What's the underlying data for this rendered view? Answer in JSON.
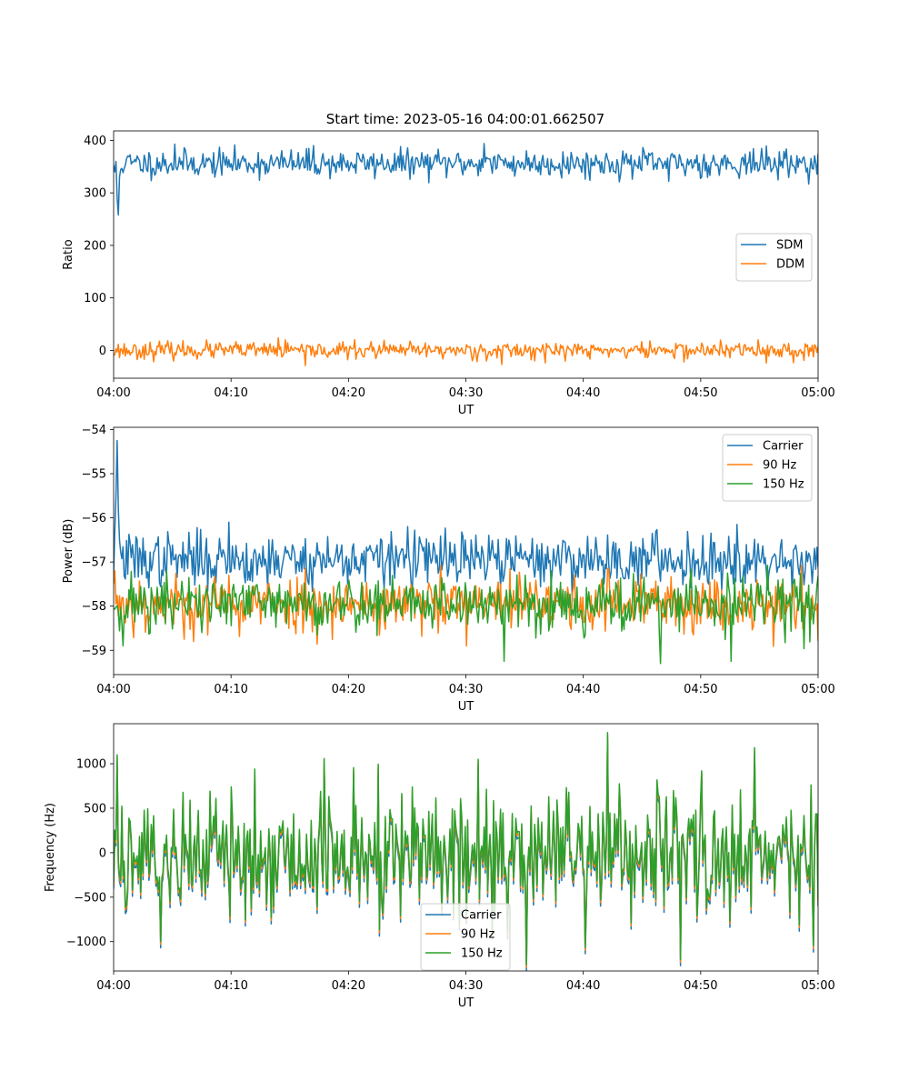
{
  "figure_title": "Start time: 2023-05-16 04:00:01.662507",
  "colors": {
    "c0": "#1f77b4",
    "c1": "#ff7f0e",
    "c2": "#2ca02c"
  },
  "chart_data": [
    {
      "type": "line",
      "title": "Start time: 2023-05-16 04:00:01.662507",
      "xlabel": "UT",
      "ylabel": "Ratio",
      "x_ticks": [
        "04:00",
        "04:10",
        "04:20",
        "04:30",
        "04:40",
        "04:50",
        "05:00"
      ],
      "y_ticks": [
        "0",
        "100",
        "200",
        "300",
        "400"
      ],
      "y_tick_values": [
        0,
        100,
        200,
        300,
        400
      ],
      "xlim": [
        "04:00",
        "05:00"
      ],
      "ylim": [
        -53,
        418
      ],
      "legend_position": "center-right",
      "n_points": 600,
      "series": [
        {
          "name": "SDM",
          "color": "#1f77b4",
          "mean": 356,
          "spread": 13,
          "seed": 11,
          "spikes": [
            [
              1,
              340
            ],
            [
              2,
              360
            ],
            [
              3,
              290
            ],
            [
              4,
              258
            ],
            [
              5,
              330
            ],
            [
              52,
              393
            ],
            [
              170,
              390
            ],
            [
              315,
              394
            ],
            [
              472,
              322
            ]
          ]
        },
        {
          "name": "DDM",
          "color": "#ff7f0e",
          "mean": 0,
          "spread": 8,
          "seed": 23,
          "spikes": [
            [
              140,
              24
            ],
            [
              163,
              -29
            ],
            [
              330,
              -27
            ],
            [
              548,
              20
            ],
            [
              555,
              -24
            ]
          ]
        }
      ]
    },
    {
      "type": "line",
      "xlabel": "UT",
      "ylabel": "Power (dB)",
      "x_ticks": [
        "04:00",
        "04:10",
        "04:20",
        "04:30",
        "04:40",
        "04:50",
        "05:00"
      ],
      "y_ticks": [
        "−54",
        "−55",
        "−56",
        "−57",
        "−58",
        "−59"
      ],
      "y_tick_values": [
        -54,
        -55,
        -56,
        -57,
        -58,
        -59
      ],
      "xlim": [
        "04:00",
        "05:00"
      ],
      "ylim": [
        -59.55,
        -53.95
      ],
      "legend_position": "top-right",
      "n_points": 600,
      "series": [
        {
          "name": "Carrier",
          "color": "#1f77b4",
          "mean": -56.95,
          "spread": 0.3,
          "seed": 37,
          "spikes": [
            [
              1,
              -56.3
            ],
            [
              2,
              -55.5
            ],
            [
              3,
              -54.25
            ],
            [
              4,
              -55.8
            ],
            [
              5,
              -56.5
            ],
            [
              98,
              -56.1
            ],
            [
              250,
              -56.2
            ],
            [
              530,
              -56.15
            ]
          ]
        },
        {
          "name": "90 Hz",
          "color": "#ff7f0e",
          "mean": -57.95,
          "spread": 0.32,
          "seed": 53,
          "spikes": [
            [
              1,
              -57.2
            ],
            [
              60,
              -58.75
            ],
            [
              300,
              -58.9
            ],
            [
              420,
              -57.15
            ]
          ]
        },
        {
          "name": "150 Hz",
          "color": "#2ca02c",
          "mean": -57.95,
          "spread": 0.32,
          "seed": 71,
          "spikes": [
            [
              8,
              -58.9
            ],
            [
              332,
              -59.25
            ],
            [
              372,
              -57.2
            ],
            [
              465,
              -59.3
            ],
            [
              525,
              -59.25
            ]
          ]
        }
      ]
    },
    {
      "type": "line",
      "xlabel": "UT",
      "ylabel": "Frequency (Hz)",
      "x_ticks": [
        "04:00",
        "04:10",
        "04:20",
        "04:30",
        "04:40",
        "04:50",
        "05:00"
      ],
      "y_ticks": [
        "1000",
        "500",
        "0",
        "−500",
        "−1000"
      ],
      "y_tick_values": [
        1000,
        500,
        0,
        -500,
        -1000
      ],
      "xlim": [
        "04:00",
        "05:00"
      ],
      "ylim": [
        -1330,
        1450
      ],
      "legend_position": "bottom-center",
      "n_points": 600,
      "series": [
        {
          "name": "Carrier",
          "color": "#1f77b4",
          "mean": 0,
          "spread": 350,
          "seed": 89,
          "offset": -70,
          "spikes": [
            [
              3,
              1100
            ],
            [
              40,
              -1000
            ],
            [
              120,
              940
            ],
            [
              310,
              1050
            ],
            [
              322,
              -900
            ],
            [
              420,
              1350
            ],
            [
              482,
              -1200
            ],
            [
              500,
              920
            ],
            [
              545,
              1180
            ]
          ]
        },
        {
          "name": "90 Hz",
          "color": "#ff7f0e",
          "mean": 0,
          "spread": 350,
          "seed": 89,
          "offset": -30,
          "spikes": [
            [
              3,
              1100
            ],
            [
              40,
              -1000
            ],
            [
              120,
              940
            ],
            [
              310,
              1050
            ],
            [
              322,
              -900
            ],
            [
              420,
              1350
            ],
            [
              482,
              -1200
            ],
            [
              500,
              920
            ],
            [
              545,
              1180
            ]
          ]
        },
        {
          "name": "150 Hz",
          "color": "#2ca02c",
          "mean": 0,
          "spread": 350,
          "seed": 89,
          "offset": 0,
          "spikes": [
            [
              3,
              1100
            ],
            [
              40,
              -1000
            ],
            [
              120,
              940
            ],
            [
              310,
              1050
            ],
            [
              322,
              -900
            ],
            [
              420,
              1350
            ],
            [
              482,
              -1200
            ],
            [
              500,
              920
            ],
            [
              545,
              1180
            ]
          ]
        }
      ]
    }
  ]
}
